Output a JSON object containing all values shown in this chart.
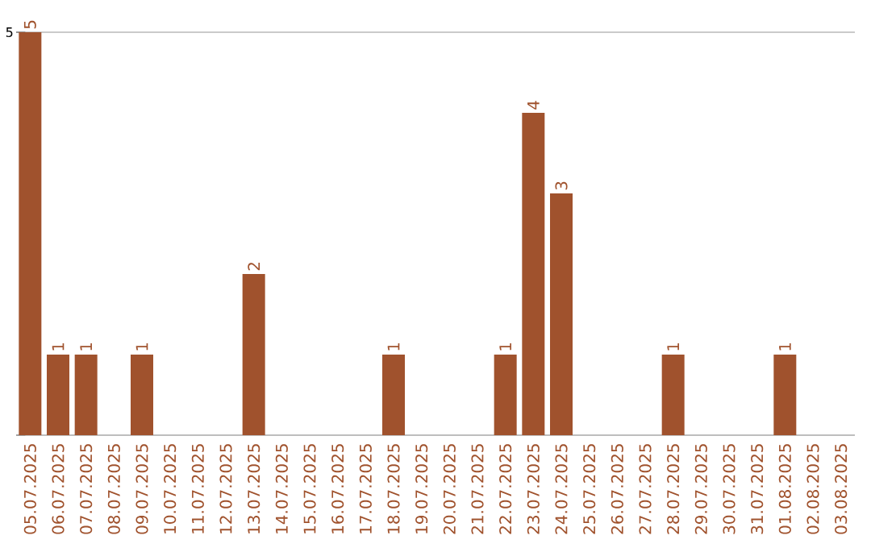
{
  "chart_data": {
    "type": "bar",
    "categories": [
      "05.07.2025",
      "06.07.2025",
      "07.07.2025",
      "08.07.2025",
      "09.07.2025",
      "10.07.2025",
      "11.07.2025",
      "12.07.2025",
      "13.07.2025",
      "14.07.2025",
      "15.07.2025",
      "16.07.2025",
      "17.07.2025",
      "18.07.2025",
      "19.07.2025",
      "20.07.2025",
      "21.07.2025",
      "22.07.2025",
      "23.07.2025",
      "24.07.2025",
      "25.07.2025",
      "26.07.2025",
      "27.07.2025",
      "28.07.2025",
      "29.07.2025",
      "30.07.2025",
      "31.07.2025",
      "01.08.2025",
      "02.08.2025",
      "03.08.2025"
    ],
    "values": [
      5,
      1,
      1,
      0,
      1,
      0,
      0,
      0,
      2,
      0,
      0,
      0,
      0,
      1,
      0,
      0,
      0,
      1,
      4,
      3,
      0,
      0,
      0,
      1,
      0,
      0,
      0,
      1,
      0,
      0
    ],
    "value_labels": [
      "5",
      "1",
      "1",
      null,
      "1",
      null,
      null,
      null,
      "2",
      null,
      null,
      null,
      null,
      "1",
      null,
      null,
      null,
      "1",
      "4",
      "3",
      null,
      null,
      null,
      "1",
      null,
      null,
      null,
      "1",
      null,
      null
    ],
    "color": "#a0522d",
    "ylim": [
      0,
      5
    ],
    "yticks": [
      {
        "value": 0,
        "label": null
      },
      5
    ],
    "grid": "y"
  }
}
